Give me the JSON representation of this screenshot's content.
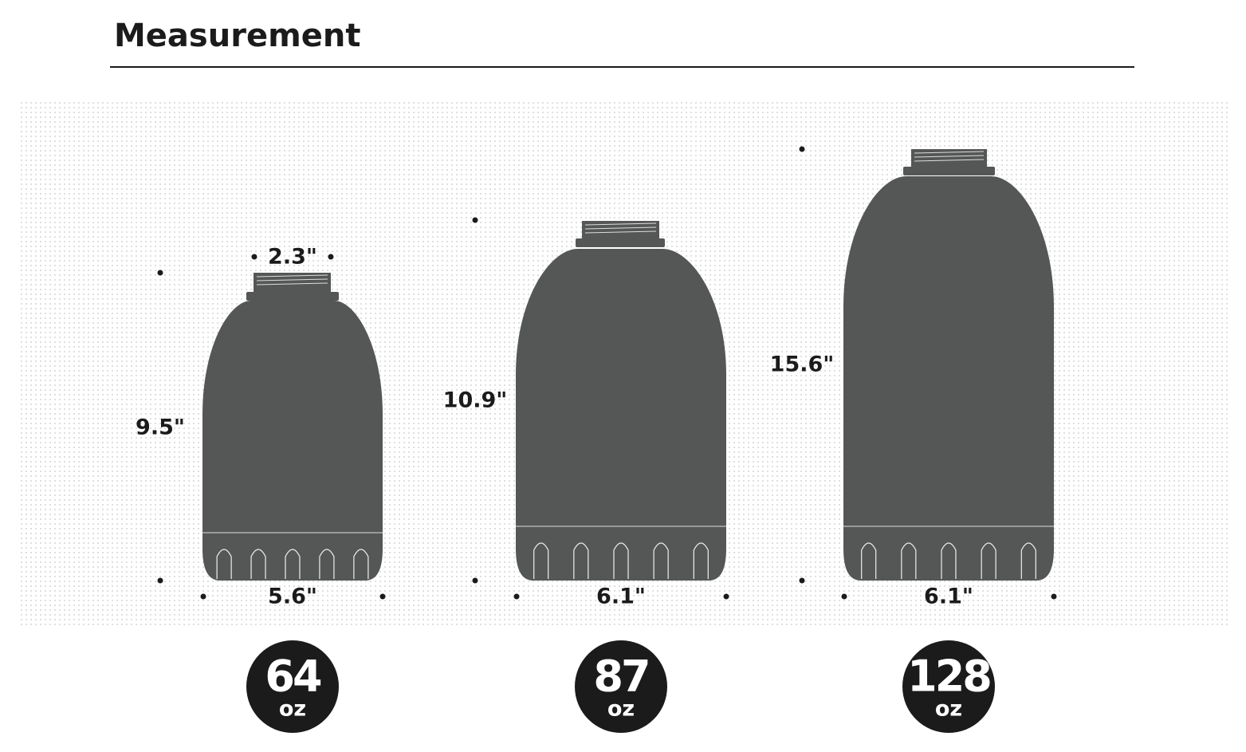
{
  "header": {
    "title": "Measurement"
  },
  "bottles": [
    {
      "neck": "2.3\"",
      "height": "9.5\"",
      "width": "5.6\"",
      "capacity": "64",
      "unit": "oz"
    },
    {
      "height": "10.9\"",
      "width": "6.1\"",
      "capacity": "87",
      "unit": "oz"
    },
    {
      "height": "15.6\"",
      "width": "6.1\"",
      "capacity": "128",
      "unit": "oz"
    }
  ]
}
